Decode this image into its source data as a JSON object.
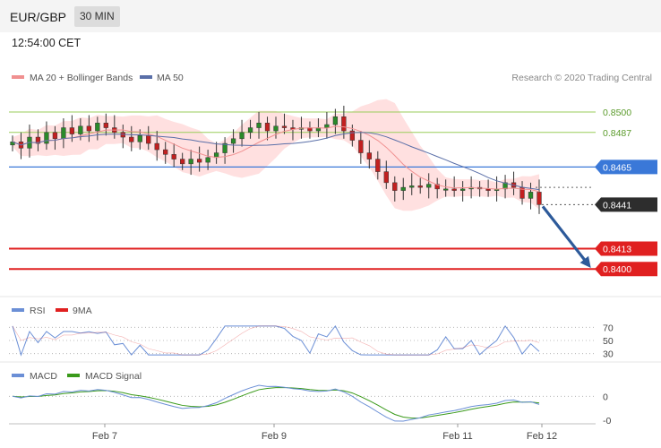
{
  "header": {
    "symbol": "EUR/GBP",
    "timeframe": "30 MIN",
    "time": "12:54:00 CET"
  },
  "legend": {
    "ma20_label": "MA 20 + Bollinger Bands",
    "ma50_label": "MA 50",
    "copyright": "Research © 2020 Trading Central",
    "rsi_label": "RSI",
    "rsi_ma_label": "9MA",
    "macd_label": "MACD",
    "macd_signal_label": "MACD Signal"
  },
  "colors": {
    "bollinger": "#ffd6d6",
    "ma20": "#f09090",
    "ma50": "#5a6fa8",
    "candle": "#2a8a2a",
    "candle_down": "#c22020",
    "resistance": "#3a78d8",
    "support": "#e02020",
    "target_lines": "#9acd5a",
    "arrow": "#2d5a9a",
    "rsi": "#6b8fd6",
    "rsi_ma": "#e02020",
    "macd": "#6b8fd6",
    "macd_signal": "#3a9a1a"
  },
  "chart_data": [
    {
      "type": "candlestick",
      "x_labels": [
        "Feb 7",
        "Feb 9",
        "Feb 11",
        "Feb 12"
      ],
      "ylim": [
        0.8383,
        0.8516
      ],
      "levels": [
        {
          "value": 0.85,
          "label": "0.8500",
          "kind": "target"
        },
        {
          "value": 0.8487,
          "label": "0.8487",
          "kind": "target"
        },
        {
          "value": 0.8465,
          "label": "0.8465",
          "kind": "resistance"
        },
        {
          "value": 0.8441,
          "label": "0.8441",
          "kind": "last"
        },
        {
          "value": 0.8413,
          "label": "0.8413",
          "kind": "support"
        },
        {
          "value": 0.84,
          "label": "0.8400",
          "kind": "support"
        }
      ],
      "forecast_arrow": {
        "from": 0.8441,
        "to": 0.84
      },
      "close": [
        0.8481,
        0.8477,
        0.8484,
        0.848,
        0.8487,
        0.8483,
        0.849,
        0.8486,
        0.8491,
        0.8488,
        0.8493,
        0.849,
        0.8487,
        0.8484,
        0.8481,
        0.8485,
        0.848,
        0.8476,
        0.8473,
        0.847,
        0.8467,
        0.847,
        0.8468,
        0.8471,
        0.8474,
        0.848,
        0.8483,
        0.8487,
        0.849,
        0.8493,
        0.8488,
        0.8491,
        0.849,
        0.8489,
        0.849,
        0.8488,
        0.849,
        0.8492,
        0.8497,
        0.8488,
        0.8482,
        0.8474,
        0.847,
        0.8462,
        0.8455,
        0.845,
        0.8452,
        0.8453,
        0.8452,
        0.8454,
        0.8451,
        0.8451,
        0.845,
        0.8451,
        0.8452,
        0.8451,
        0.845,
        0.8451,
        0.8455,
        0.8452,
        0.8445,
        0.8449,
        0.8441
      ]
    },
    {
      "type": "line",
      "name": "RSI",
      "ticks": [
        70,
        50,
        30
      ],
      "ylim": [
        20,
        80
      ]
    },
    {
      "type": "line",
      "name": "MACD",
      "ticks": [
        "0",
        "-0"
      ]
    }
  ]
}
